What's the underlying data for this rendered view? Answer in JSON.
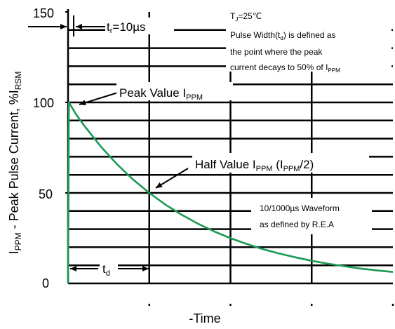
{
  "chart_data": {
    "type": "line",
    "title": "",
    "xlabel": "-Time",
    "ylabel": "IPPM - Peak Pulse Current, %IRSM",
    "ylim": [
      0,
      150
    ],
    "yticks": [
      "0",
      "50",
      "100",
      "150"
    ],
    "grid": true,
    "x_unit": "µs",
    "series": [
      {
        "color": "#1a9a55",
        "x": [
          0,
          10,
          100,
          200,
          400,
          600,
          800,
          1000,
          1200,
          1400,
          1600,
          1800,
          2000,
          2200,
          2400,
          2600,
          2800,
          3000,
          3200,
          3400,
          3600,
          3800,
          4000
        ],
        "y": [
          0,
          100,
          93.3,
          87.1,
          75.8,
          66.0,
          57.4,
          50.0,
          43.5,
          37.9,
          33.0,
          28.7,
          25.0,
          21.8,
          18.9,
          16.5,
          14.4,
          12.5,
          10.9,
          9.5,
          8.2,
          7.2,
          6.3
        ]
      }
    ],
    "annotations": {
      "rise_time": "tr=10µs",
      "peak_value": "Peak Value IPPM",
      "half_value": "Half Value IPPM (IPPM/2)",
      "pulse_width": "td",
      "note_tj": "TJ=25℃",
      "note_line1": "Pulse Width(td) is defined as",
      "note_line2": "the point where the peak",
      "note_line3": "current decays to 50% of IPPM",
      "waveform_line1": "10/1000µs Waveform",
      "waveform_line2": "as defined by R.E.A"
    }
  }
}
